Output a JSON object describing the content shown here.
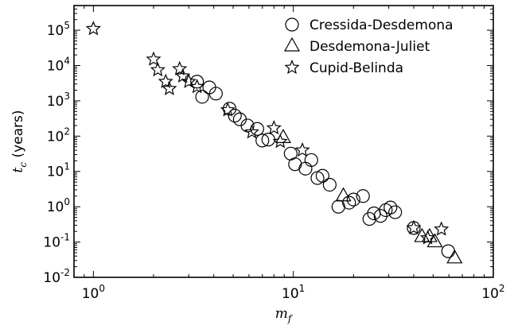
{
  "chart_data": {
    "type": "scatter",
    "xlabel_main": "m",
    "xlabel_sub": "f",
    "ylabel_main": "t",
    "ylabel_sub": "c",
    "ylabel_rest": " (years)",
    "x_scale": "log",
    "y_scale": "log",
    "xlim": [
      0.8,
      100
    ],
    "ylim": [
      0.01,
      500000
    ],
    "grid": false,
    "legend_position": "top-right",
    "x_ticks": [
      {
        "value": 1,
        "base": "10",
        "exp": "0"
      },
      {
        "value": 10,
        "base": "10",
        "exp": "1"
      },
      {
        "value": 100,
        "base": "10",
        "exp": "2"
      }
    ],
    "y_ticks": [
      {
        "value": 0.01,
        "base": "10",
        "exp": "-2"
      },
      {
        "value": 0.1,
        "base": "10",
        "exp": "-1"
      },
      {
        "value": 1,
        "base": "10",
        "exp": "0"
      },
      {
        "value": 10,
        "base": "10",
        "exp": "1"
      },
      {
        "value": 100,
        "base": "10",
        "exp": "2"
      },
      {
        "value": 1000,
        "base": "10",
        "exp": "3"
      },
      {
        "value": 10000,
        "base": "10",
        "exp": "4"
      },
      {
        "value": 100000,
        "base": "10",
        "exp": "5"
      }
    ],
    "series": [
      {
        "name": "Cressida-Desdemona",
        "marker": "circle",
        "points": [
          [
            3.3,
            3500
          ],
          [
            3.5,
            1300
          ],
          [
            3.8,
            2400
          ],
          [
            4.1,
            1600
          ],
          [
            4.8,
            600
          ],
          [
            5.1,
            380
          ],
          [
            5.4,
            300
          ],
          [
            5.9,
            200
          ],
          [
            6.6,
            160
          ],
          [
            7.0,
            75
          ],
          [
            7.5,
            80
          ],
          [
            9.7,
            32
          ],
          [
            10.2,
            16
          ],
          [
            11.5,
            12
          ],
          [
            12.3,
            21
          ],
          [
            13.2,
            6.5
          ],
          [
            14.0,
            7.5
          ],
          [
            15.2,
            4.2
          ],
          [
            16.8,
            1.0
          ],
          [
            19.0,
            1.3
          ],
          [
            20.0,
            1.6
          ],
          [
            22.3,
            2.0
          ],
          [
            24.0,
            0.45
          ],
          [
            25.3,
            0.65
          ],
          [
            27.3,
            0.55
          ],
          [
            29.0,
            0.8
          ],
          [
            30.6,
            0.95
          ],
          [
            32.3,
            0.7
          ],
          [
            40.0,
            0.25
          ],
          [
            59.5,
            0.055
          ]
        ]
      },
      {
        "name": "Desdemona-Juliet",
        "marker": "triangle",
        "points": [
          [
            8.9,
            90
          ],
          [
            17.8,
            2.0
          ],
          [
            44.0,
            0.14
          ],
          [
            48.0,
            0.14
          ],
          [
            51.0,
            0.1
          ],
          [
            64.0,
            0.035
          ]
        ]
      },
      {
        "name": "Cupid-Belinda",
        "marker": "star",
        "points": [
          [
            1.0,
            110000
          ],
          [
            2.0,
            15000
          ],
          [
            2.1,
            7500
          ],
          [
            2.3,
            3500
          ],
          [
            2.4,
            2200
          ],
          [
            2.7,
            8000
          ],
          [
            2.8,
            5000
          ],
          [
            3.0,
            3500
          ],
          [
            3.3,
            2500
          ],
          [
            4.7,
            550
          ],
          [
            6.2,
            130
          ],
          [
            8.0,
            170
          ],
          [
            8.6,
            70
          ],
          [
            11.1,
            40
          ],
          [
            40.0,
            0.25
          ],
          [
            47.0,
            0.13
          ],
          [
            55.0,
            0.23
          ]
        ]
      }
    ]
  }
}
